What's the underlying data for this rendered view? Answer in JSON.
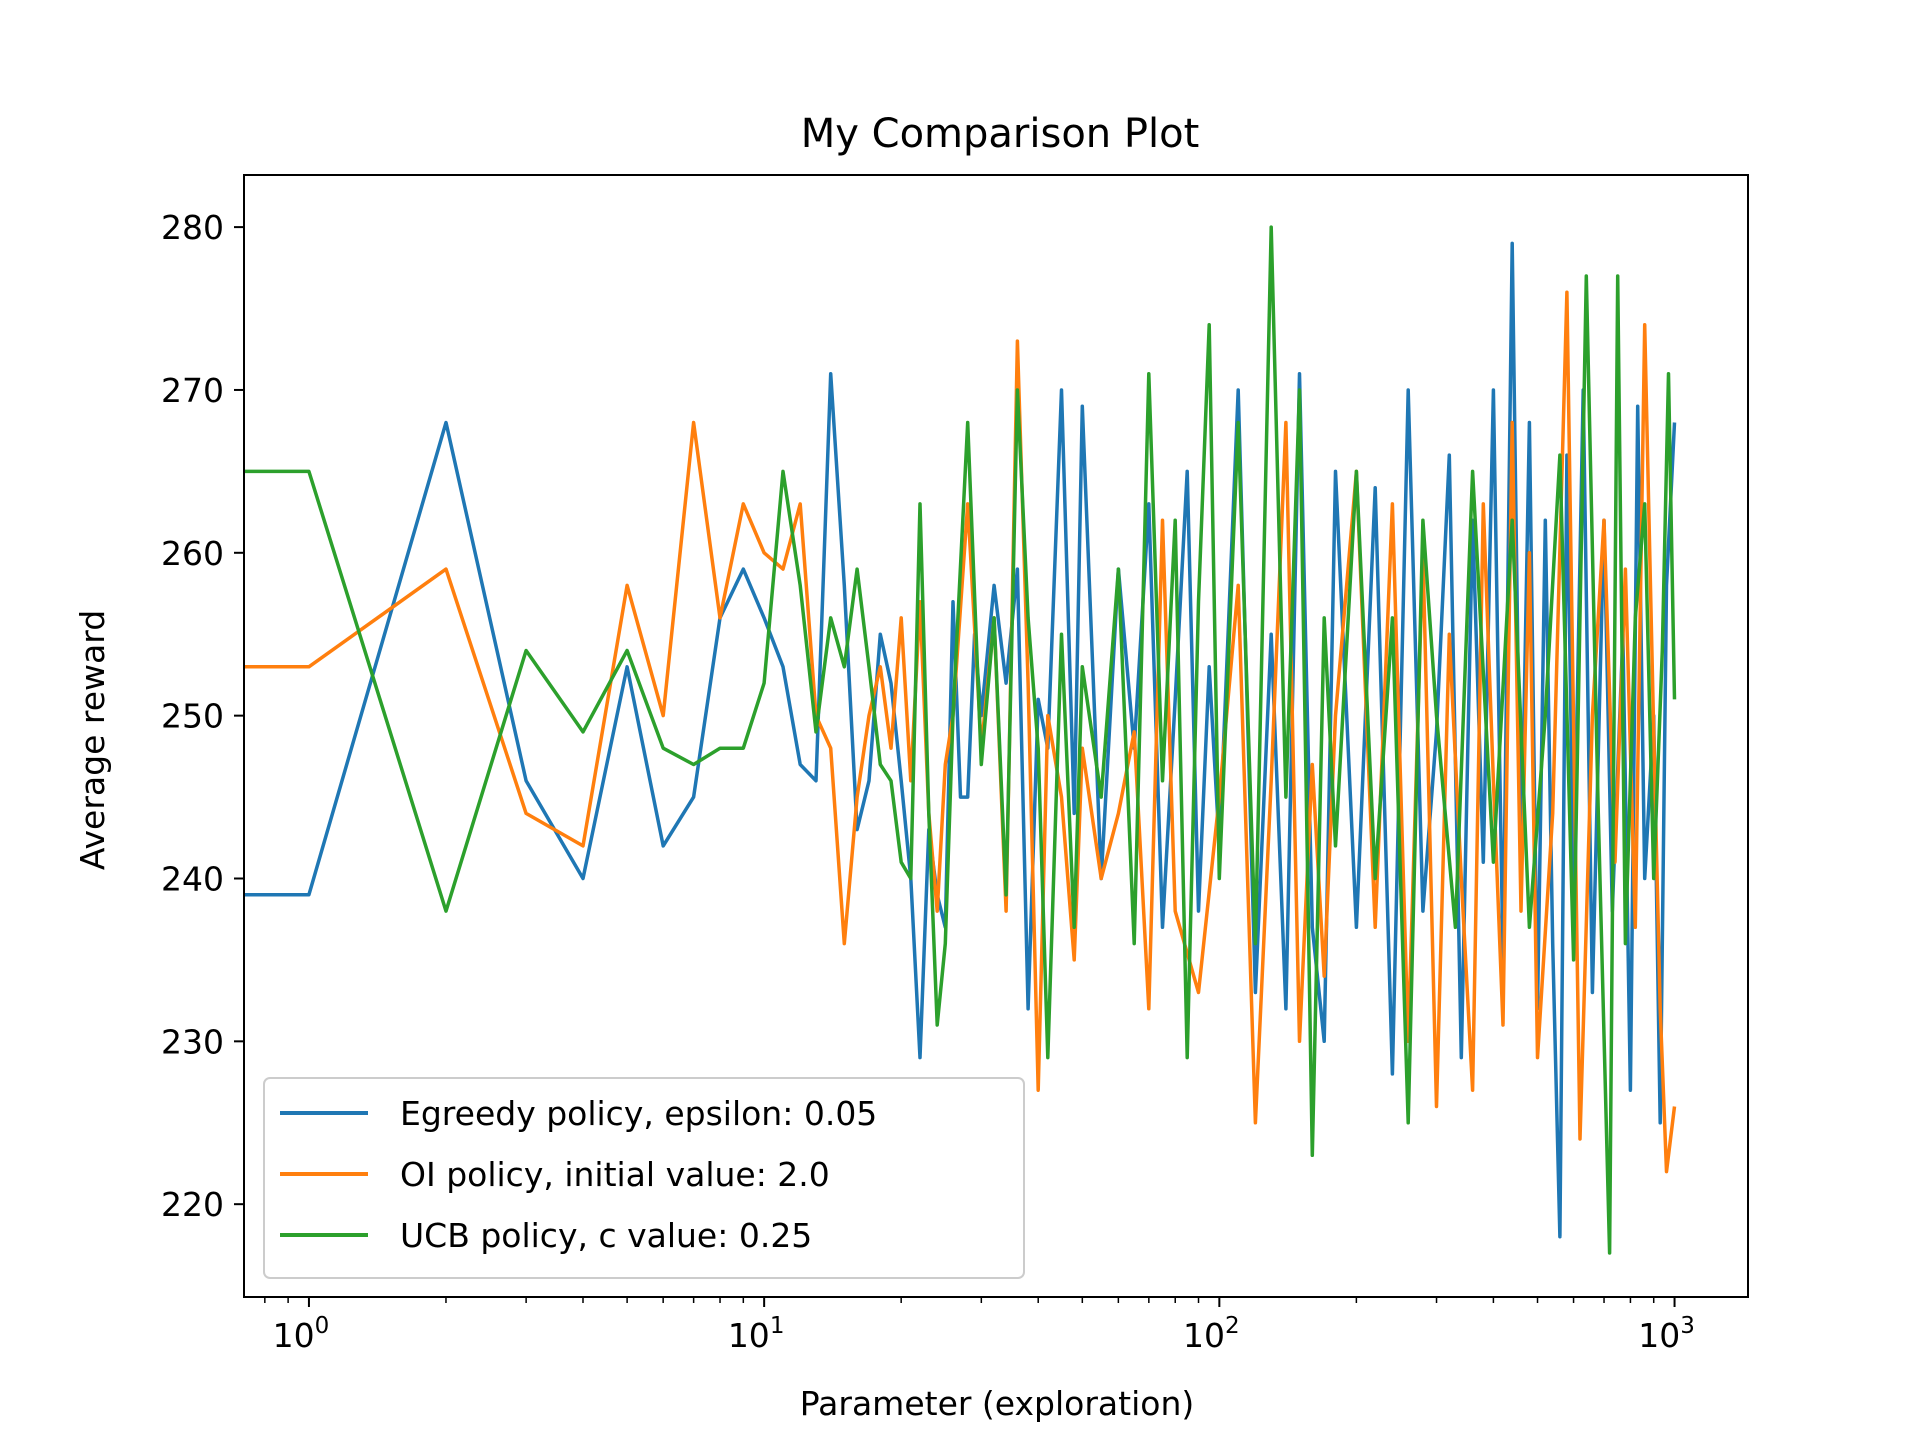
{
  "chart_data": {
    "type": "line",
    "title": "My Comparison Plot",
    "xlabel": "Parameter (exploration)",
    "ylabel": "Average reward",
    "xscale": "log",
    "xlim": [
      0.72,
      1450
    ],
    "ylim": [
      214.3,
      283.2
    ],
    "x_ticks": [
      {
        "value": 1,
        "base": "10",
        "exp": "0"
      },
      {
        "value": 10,
        "base": "10",
        "exp": "1"
      },
      {
        "value": 100,
        "base": "10",
        "exp": "2"
      },
      {
        "value": 1000,
        "base": "10",
        "exp": "3"
      }
    ],
    "y_ticks": [
      {
        "value": 220,
        "label": "220"
      },
      {
        "value": 230,
        "label": "230"
      },
      {
        "value": 240,
        "label": "240"
      },
      {
        "value": 250,
        "label": "250"
      },
      {
        "value": 260,
        "label": "260"
      },
      {
        "value": 270,
        "label": "270"
      },
      {
        "value": 280,
        "label": "280"
      }
    ],
    "grid": false,
    "legend_position": "lower-left",
    "series": [
      {
        "name": "Egreedy policy, epsilon: 0.05",
        "color": "#1f77b4",
        "points": [
          [
            0,
            239
          ],
          [
            1,
            239
          ],
          [
            2,
            268
          ],
          [
            3,
            246
          ],
          [
            4,
            240
          ],
          [
            5,
            253
          ],
          [
            6,
            242
          ],
          [
            7,
            245
          ],
          [
            8,
            256
          ],
          [
            9,
            259
          ],
          [
            10,
            256
          ],
          [
            11,
            253
          ],
          [
            12,
            247
          ],
          [
            13,
            246
          ],
          [
            14,
            271
          ],
          [
            15,
            258
          ],
          [
            16,
            243
          ],
          [
            17,
            246
          ],
          [
            18,
            255
          ],
          [
            19,
            252
          ],
          [
            20,
            246
          ],
          [
            21,
            240
          ],
          [
            22,
            229
          ],
          [
            23,
            243
          ],
          [
            24,
            239
          ],
          [
            25,
            237
          ],
          [
            26,
            257
          ],
          [
            27,
            245
          ],
          [
            28,
            245
          ],
          [
            29,
            255
          ],
          [
            30,
            250
          ],
          [
            32,
            258
          ],
          [
            34,
            252
          ],
          [
            36,
            259
          ],
          [
            38,
            232
          ],
          [
            40,
            251
          ],
          [
            42,
            248
          ],
          [
            45,
            270
          ],
          [
            48,
            244
          ],
          [
            50,
            269
          ],
          [
            55,
            240
          ],
          [
            60,
            259
          ],
          [
            65,
            248
          ],
          [
            70,
            263
          ],
          [
            75,
            237
          ],
          [
            80,
            251
          ],
          [
            85,
            265
          ],
          [
            90,
            238
          ],
          [
            95,
            253
          ],
          [
            100,
            242
          ],
          [
            110,
            270
          ],
          [
            120,
            233
          ],
          [
            130,
            255
          ],
          [
            140,
            232
          ],
          [
            150,
            271
          ],
          [
            160,
            237
          ],
          [
            170,
            230
          ],
          [
            180,
            265
          ],
          [
            200,
            237
          ],
          [
            220,
            264
          ],
          [
            240,
            228
          ],
          [
            260,
            270
          ],
          [
            280,
            238
          ],
          [
            300,
            249
          ],
          [
            320,
            266
          ],
          [
            340,
            229
          ],
          [
            360,
            262
          ],
          [
            380,
            241
          ],
          [
            400,
            270
          ],
          [
            420,
            235
          ],
          [
            440,
            279
          ],
          [
            460,
            240
          ],
          [
            480,
            268
          ],
          [
            500,
            232
          ],
          [
            520,
            262
          ],
          [
            540,
            236
          ],
          [
            560,
            218
          ],
          [
            580,
            266
          ],
          [
            600,
            239
          ],
          [
            630,
            270
          ],
          [
            660,
            233
          ],
          [
            700,
            262
          ],
          [
            730,
            238
          ],
          [
            770,
            255
          ],
          [
            800,
            227
          ],
          [
            830,
            269
          ],
          [
            860,
            240
          ],
          [
            900,
            250
          ],
          [
            930,
            225
          ],
          [
            960,
            258
          ],
          [
            1000,
            268
          ]
        ]
      },
      {
        "name": "OI policy, initial value: 2.0",
        "color": "#ff7f0e",
        "points": [
          [
            0,
            253
          ],
          [
            1,
            253
          ],
          [
            2,
            259
          ],
          [
            3,
            244
          ],
          [
            4,
            242
          ],
          [
            5,
            258
          ],
          [
            6,
            250
          ],
          [
            7,
            268
          ],
          [
            8,
            256
          ],
          [
            9,
            263
          ],
          [
            10,
            260
          ],
          [
            11,
            259
          ],
          [
            12,
            263
          ],
          [
            13,
            250
          ],
          [
            14,
            248
          ],
          [
            15,
            236
          ],
          [
            16,
            245
          ],
          [
            17,
            250
          ],
          [
            18,
            253
          ],
          [
            19,
            248
          ],
          [
            20,
            256
          ],
          [
            21,
            246
          ],
          [
            22,
            257
          ],
          [
            23,
            244
          ],
          [
            24,
            238
          ],
          [
            25,
            247
          ],
          [
            26,
            250
          ],
          [
            28,
            263
          ],
          [
            30,
            248
          ],
          [
            32,
            256
          ],
          [
            34,
            238
          ],
          [
            36,
            273
          ],
          [
            38,
            252
          ],
          [
            40,
            227
          ],
          [
            42,
            250
          ],
          [
            45,
            245
          ],
          [
            48,
            235
          ],
          [
            50,
            248
          ],
          [
            55,
            240
          ],
          [
            60,
            244
          ],
          [
            65,
            249
          ],
          [
            70,
            232
          ],
          [
            75,
            262
          ],
          [
            80,
            238
          ],
          [
            90,
            233
          ],
          [
            100,
            245
          ],
          [
            110,
            258
          ],
          [
            120,
            225
          ],
          [
            130,
            246
          ],
          [
            140,
            268
          ],
          [
            150,
            230
          ],
          [
            160,
            247
          ],
          [
            170,
            234
          ],
          [
            180,
            250
          ],
          [
            200,
            265
          ],
          [
            220,
            237
          ],
          [
            240,
            263
          ],
          [
            260,
            230
          ],
          [
            280,
            260
          ],
          [
            300,
            226
          ],
          [
            320,
            255
          ],
          [
            340,
            240
          ],
          [
            360,
            227
          ],
          [
            380,
            263
          ],
          [
            400,
            246
          ],
          [
            420,
            231
          ],
          [
            440,
            268
          ],
          [
            460,
            238
          ],
          [
            480,
            260
          ],
          [
            500,
            229
          ],
          [
            540,
            244
          ],
          [
            580,
            276
          ],
          [
            620,
            224
          ],
          [
            660,
            250
          ],
          [
            700,
            262
          ],
          [
            740,
            241
          ],
          [
            780,
            259
          ],
          [
            820,
            237
          ],
          [
            860,
            274
          ],
          [
            900,
            249
          ],
          [
            930,
            232
          ],
          [
            960,
            222
          ],
          [
            1000,
            226
          ]
        ]
      },
      {
        "name": "UCB policy, c value: 0.25",
        "color": "#2ca02c",
        "points": [
          [
            0,
            265
          ],
          [
            1,
            265
          ],
          [
            2,
            238
          ],
          [
            3,
            254
          ],
          [
            4,
            249
          ],
          [
            5,
            254
          ],
          [
            6,
            248
          ],
          [
            7,
            247
          ],
          [
            8,
            248
          ],
          [
            9,
            248
          ],
          [
            10,
            252
          ],
          [
            11,
            265
          ],
          [
            12,
            258
          ],
          [
            13,
            249
          ],
          [
            14,
            256
          ],
          [
            15,
            253
          ],
          [
            16,
            259
          ],
          [
            17,
            253
          ],
          [
            18,
            247
          ],
          [
            19,
            246
          ],
          [
            20,
            241
          ],
          [
            21,
            240
          ],
          [
            22,
            263
          ],
          [
            23,
            244
          ],
          [
            24,
            231
          ],
          [
            25,
            236
          ],
          [
            26,
            250
          ],
          [
            28,
            268
          ],
          [
            30,
            247
          ],
          [
            32,
            256
          ],
          [
            34,
            239
          ],
          [
            36,
            270
          ],
          [
            38,
            256
          ],
          [
            40,
            248
          ],
          [
            42,
            229
          ],
          [
            45,
            255
          ],
          [
            48,
            237
          ],
          [
            50,
            253
          ],
          [
            55,
            245
          ],
          [
            60,
            259
          ],
          [
            65,
            236
          ],
          [
            70,
            271
          ],
          [
            75,
            246
          ],
          [
            80,
            262
          ],
          [
            85,
            229
          ],
          [
            90,
            257
          ],
          [
            95,
            274
          ],
          [
            100,
            240
          ],
          [
            110,
            268
          ],
          [
            120,
            236
          ],
          [
            130,
            280
          ],
          [
            140,
            245
          ],
          [
            150,
            270
          ],
          [
            160,
            223
          ],
          [
            170,
            256
          ],
          [
            180,
            242
          ],
          [
            200,
            265
          ],
          [
            220,
            240
          ],
          [
            240,
            256
          ],
          [
            260,
            225
          ],
          [
            280,
            262
          ],
          [
            300,
            250
          ],
          [
            330,
            237
          ],
          [
            360,
            265
          ],
          [
            400,
            241
          ],
          [
            440,
            262
          ],
          [
            480,
            237
          ],
          [
            520,
            250
          ],
          [
            560,
            266
          ],
          [
            600,
            235
          ],
          [
            640,
            277
          ],
          [
            680,
            244
          ],
          [
            720,
            217
          ],
          [
            750,
            277
          ],
          [
            780,
            236
          ],
          [
            820,
            256
          ],
          [
            860,
            263
          ],
          [
            900,
            240
          ],
          [
            940,
            254
          ],
          [
            970,
            271
          ],
          [
            1000,
            251
          ]
        ]
      }
    ]
  }
}
